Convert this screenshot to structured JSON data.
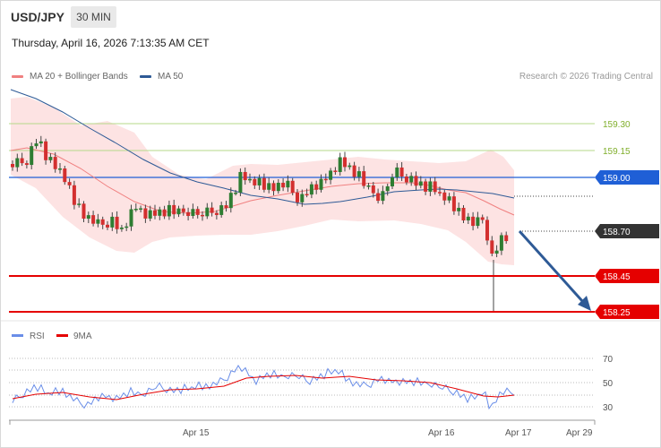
{
  "header": {
    "symbol": "USD/JPY",
    "timeframe": "30 MIN"
  },
  "timestamp": "Thursday, April 16, 2026 7:13:35 AM CET",
  "legend": {
    "ma20_label": "MA 20 + Bollinger Bands",
    "ma50_label": "MA 50",
    "copyright": "Research © 2026 Trading Central",
    "rsi_label": "RSI",
    "rsi_ma_label": "9MA"
  },
  "colors": {
    "ma20": "#f08080",
    "ma50": "#2e5a96",
    "bull": "#2e7d32",
    "bear": "#d32f2f",
    "support": "#e50000",
    "pivot": "#1f5fd6",
    "resistance": "#9acd32",
    "arrow": "#2e5a96"
  },
  "levels": {
    "r2": "159.30",
    "r1": "159.15",
    "pivot": "159.00",
    "last": "158.70",
    "s1": "158.45",
    "s2": "158.25"
  },
  "x_axis": {
    "labels": [
      "Apr 15",
      "Apr 16",
      "Apr 17",
      "Apr 29"
    ]
  },
  "rsi_axis": {
    "labels": [
      "70",
      "50",
      "30"
    ]
  }
}
